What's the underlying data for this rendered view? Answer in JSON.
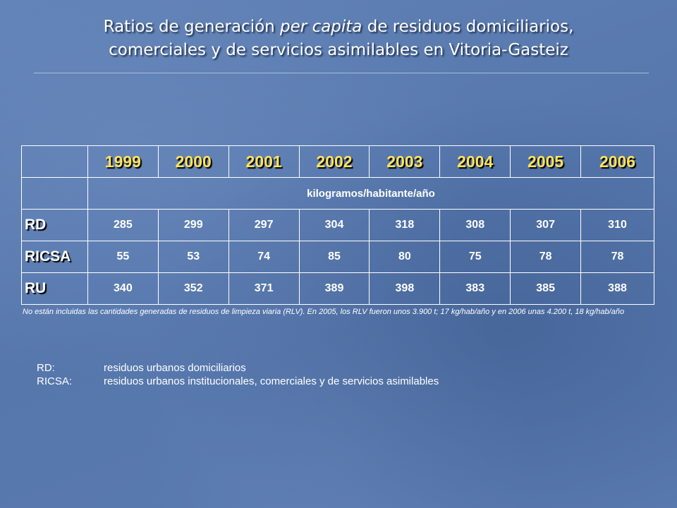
{
  "title": {
    "line1_before": "Ratios de generación ",
    "line1_italic": "per capita",
    "line1_after": " de residuos domiciliarios,",
    "line2": "comerciales y de servicios asimilables en Vitoria-Gasteiz"
  },
  "table": {
    "years": [
      "1999",
      "2000",
      "2001",
      "2002",
      "2003",
      "2004",
      "2005",
      "2006"
    ],
    "units": "kilogramos/habitante/año",
    "rows": [
      {
        "label": "RD",
        "values": [
          "285",
          "299",
          "297",
          "304",
          "318",
          "308",
          "307",
          "310"
        ]
      },
      {
        "label": "RICSA",
        "values": [
          "55",
          "53",
          "74",
          "85",
          "80",
          "75",
          "78",
          "78"
        ]
      },
      {
        "label": "RU",
        "values": [
          "340",
          "352",
          "371",
          "389",
          "398",
          "383",
          "385",
          "388"
        ]
      }
    ]
  },
  "note": "No están incluidas las cantidades generadas de residuos de limpieza viaria (RLV). En 2005, los RLV fueron unos 3.900 t; 17 kg/hab/año y en 2006 unas 4.200 t, 18 kg/hab/año",
  "legend": [
    {
      "key": "RD:",
      "text": "residuos urbanos domiciliarios"
    },
    {
      "key": "RICSA:",
      "text": "residuos urbanos institucionales, comerciales y de servicios asimilables"
    }
  ],
  "colors": {
    "background": "#5b7bb0",
    "year_text": "#ffe35c",
    "border": "#ffffff"
  }
}
